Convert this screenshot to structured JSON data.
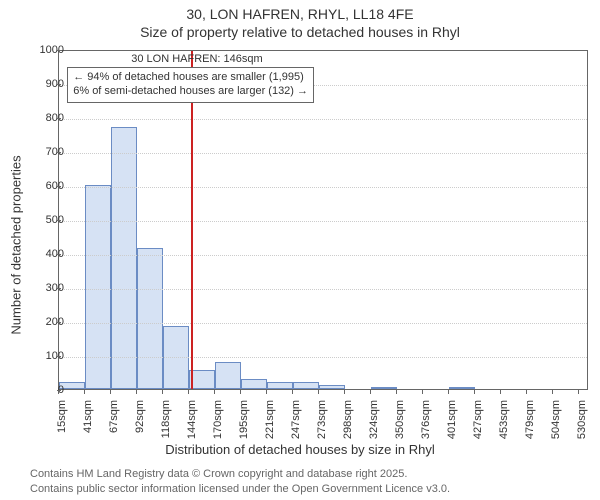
{
  "title_line1": "30, LON HAFREN, RHYL, LL18 4FE",
  "title_line2": "Size of property relative to detached houses in Rhyl",
  "y_axis_label": "Number of detached properties",
  "x_axis_label": "Distribution of detached houses by size in Rhyl",
  "chart": {
    "type": "histogram",
    "background_color": "#ffffff",
    "axis_color": "#666666",
    "grid_color": "#cccccc",
    "ylim": [
      0,
      1000
    ],
    "ytick_step": 100,
    "yticks": [
      0,
      100,
      200,
      300,
      400,
      500,
      600,
      700,
      800,
      900,
      1000
    ],
    "xlim": [
      15,
      540
    ],
    "xticks": [
      15,
      41,
      67,
      92,
      118,
      144,
      170,
      195,
      221,
      247,
      273,
      298,
      324,
      350,
      376,
      401,
      427,
      453,
      479,
      504,
      530
    ],
    "xtick_labels": [
      "15sqm",
      "41sqm",
      "67sqm",
      "92sqm",
      "118sqm",
      "144sqm",
      "170sqm",
      "195sqm",
      "221sqm",
      "247sqm",
      "273sqm",
      "298sqm",
      "324sqm",
      "350sqm",
      "376sqm",
      "401sqm",
      "427sqm",
      "453sqm",
      "479sqm",
      "504sqm",
      "530sqm"
    ],
    "bars": {
      "bin_edges": [
        15,
        41,
        67,
        92,
        118,
        144,
        170,
        195,
        221,
        247,
        273,
        298,
        324,
        350,
        376,
        401,
        427,
        453,
        479,
        504,
        530
      ],
      "values": [
        22,
        600,
        770,
        415,
        185,
        55,
        80,
        30,
        20,
        20,
        12,
        0,
        3,
        0,
        0,
        3,
        0,
        0,
        0,
        0
      ],
      "fill_color": "#d6e2f4",
      "stroke_color": "#6b8cc4"
    },
    "marker": {
      "x": 146,
      "label": "30 LON HAFREN: 146sqm",
      "color": "#cc2222",
      "width": 2
    },
    "annotation": {
      "lines": [
        "← 94% of detached houses are smaller (1,995)",
        "6% of semi-detached houses are larger (132) →"
      ],
      "border_color": "#666666",
      "background_color": "#ffffff",
      "fontsize": 11
    }
  },
  "footer_line1": "Contains HM Land Registry data © Crown copyright and database right 2025.",
  "footer_line2": "Contains public sector information licensed under the Open Government Licence v3.0."
}
